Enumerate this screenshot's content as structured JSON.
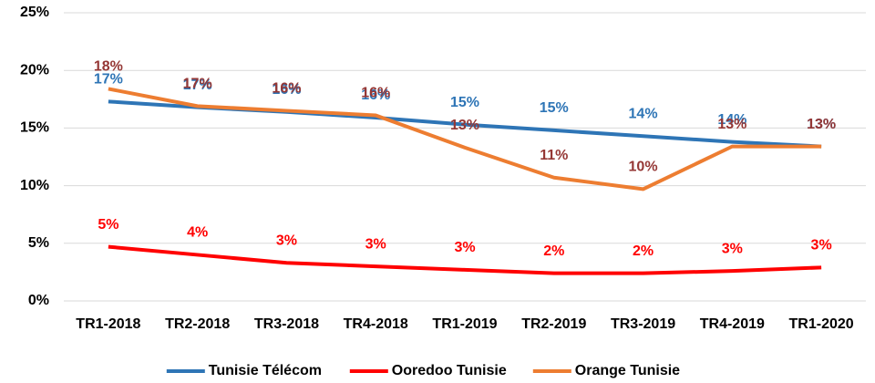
{
  "chart_data": {
    "type": "line",
    "categories": [
      "TR1-2018",
      "TR2-2018",
      "TR3-2018",
      "TR4-2018",
      "TR1-2019",
      "TR2-2019",
      "TR3-2019",
      "TR4-2019",
      "TR1-2020"
    ],
    "series": [
      {
        "name": "Tunisie Télécom",
        "color": "#2e75b6",
        "label_color": "#2e75b6",
        "values": [
          17.3,
          16.8,
          16.4,
          15.9,
          15.3,
          14.8,
          14.3,
          13.8,
          13.4
        ],
        "value_labels": [
          "17%",
          "17%",
          "16%",
          "16%",
          "15%",
          "15%",
          "14%",
          "14%",
          "13%"
        ]
      },
      {
        "name": "Ooredoo Tunisie",
        "color": "#ff0000",
        "label_color": "#ff0000",
        "values": [
          4.7,
          4.0,
          3.3,
          3.0,
          2.7,
          2.4,
          2.4,
          2.6,
          2.9
        ],
        "value_labels": [
          "5%",
          "4%",
          "3%",
          "3%",
          "3%",
          "2%",
          "2%",
          "3%",
          "3%"
        ]
      },
      {
        "name": "Orange Tunisie",
        "color": "#ed7d31",
        "label_color": "#953735",
        "values": [
          18.4,
          16.9,
          16.5,
          16.1,
          13.3,
          10.7,
          9.7,
          13.4,
          13.4
        ],
        "value_labels": [
          "18%",
          "17%",
          "16%",
          "16%",
          "13%",
          "11%",
          "10%",
          "13%",
          "13%"
        ]
      }
    ],
    "ylim": [
      0,
      25
    ],
    "yticks": [
      {
        "value": 0,
        "label": "0%"
      },
      {
        "value": 5,
        "label": "5%"
      },
      {
        "value": 10,
        "label": "10%"
      },
      {
        "value": 15,
        "label": "15%"
      },
      {
        "value": 20,
        "label": "20%"
      },
      {
        "value": 25,
        "label": "25%"
      }
    ],
    "grid": true,
    "legend": "bottom"
  }
}
